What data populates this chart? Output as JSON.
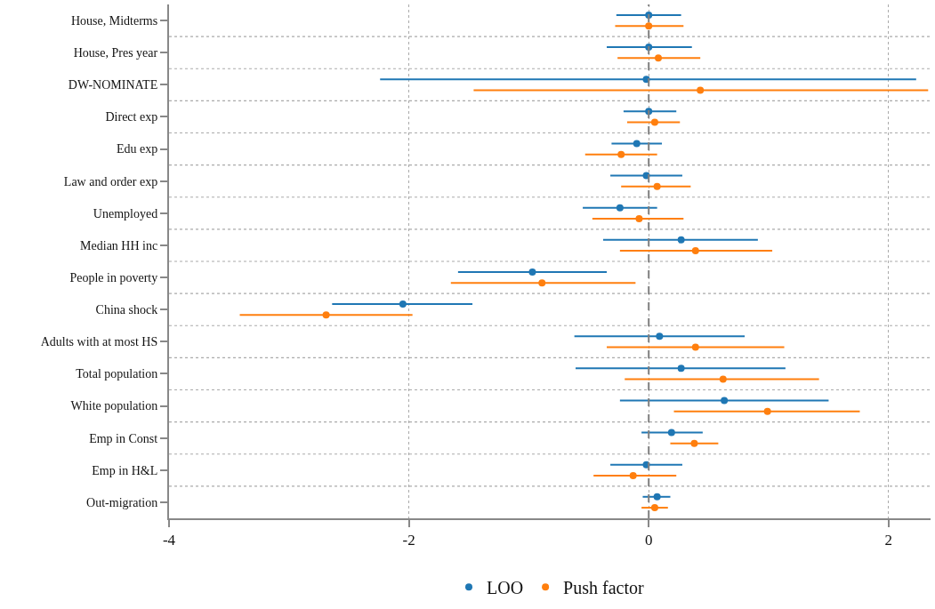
{
  "chart_data": {
    "type": "scatter",
    "orientation": "horizontal",
    "categories": [
      "House, Midterms",
      "House, Pres year",
      "DW-NOMINATE",
      "Direct exp",
      "Edu exp",
      "Law and order exp",
      "Unemployed",
      "Median HH inc",
      "People in poverty",
      "China shock",
      "Adults with at most HS",
      "Total population",
      "White population",
      "Emp in Const",
      "Emp in H&L",
      "Out-migration"
    ],
    "series": [
      {
        "name": "LOO",
        "color": "#1f77b4",
        "values": [
          0.0,
          0.0,
          -0.02,
          0.0,
          -0.1,
          -0.02,
          -0.24,
          0.27,
          -0.97,
          -2.05,
          0.09,
          0.27,
          0.63,
          0.19,
          -0.02,
          0.07
        ],
        "errors": [
          [
            -0.27,
            0.27
          ],
          [
            -0.35,
            0.36
          ],
          [
            -2.24,
            2.23
          ],
          [
            -0.21,
            0.23
          ],
          [
            -0.31,
            0.11
          ],
          [
            -0.32,
            0.28
          ],
          [
            -0.55,
            0.07
          ],
          [
            -0.38,
            0.91
          ],
          [
            -1.59,
            -0.35
          ],
          [
            -2.64,
            -1.47
          ],
          [
            -0.62,
            0.8
          ],
          [
            -0.61,
            1.14
          ],
          [
            -0.24,
            1.5
          ],
          [
            -0.06,
            0.45
          ],
          [
            -0.32,
            0.28
          ],
          [
            -0.05,
            0.18
          ]
        ]
      },
      {
        "name": "Push factor",
        "color": "#ff7f0e",
        "values": [
          0.0,
          0.08,
          0.43,
          0.05,
          -0.23,
          0.07,
          -0.08,
          0.39,
          -0.89,
          -2.69,
          0.39,
          0.62,
          0.99,
          0.38,
          -0.13,
          0.05
        ],
        "errors": [
          [
            -0.28,
            0.29
          ],
          [
            -0.26,
            0.43
          ],
          [
            -1.46,
            2.33
          ],
          [
            -0.18,
            0.26
          ],
          [
            -0.53,
            0.07
          ],
          [
            -0.23,
            0.35
          ],
          [
            -0.47,
            0.29
          ],
          [
            -0.24,
            1.03
          ],
          [
            -1.65,
            -0.11
          ],
          [
            -3.41,
            -1.97
          ],
          [
            -0.35,
            1.13
          ],
          [
            -0.2,
            1.42
          ],
          [
            0.21,
            1.76
          ],
          [
            0.18,
            0.58
          ],
          [
            -0.46,
            0.23
          ],
          [
            -0.06,
            0.16
          ]
        ]
      }
    ],
    "xlim": [
      -4,
      2.35
    ],
    "xticks": [
      -4,
      -2,
      0,
      2
    ],
    "ref_lines": [
      {
        "axis": "x",
        "value": 0,
        "color": "#7f7f7f",
        "line_style": "dashed"
      }
    ],
    "grid": true,
    "legend": "bottom",
    "marker": "circle"
  }
}
